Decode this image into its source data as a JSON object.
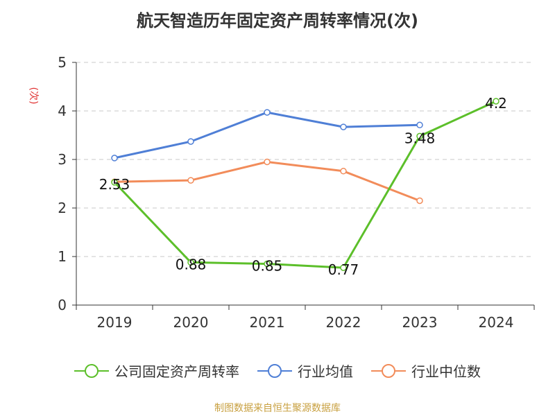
{
  "chart_data": {
    "type": "line",
    "title": "航天智造历年固定资产周转率情况(次)",
    "ylabel": "(次)",
    "categories": [
      "2019",
      "2020",
      "2021",
      "2022",
      "2023",
      "2024"
    ],
    "ylim": [
      0,
      5
    ],
    "yticks": [
      0,
      1,
      2,
      3,
      4,
      5
    ],
    "grid": true,
    "legend_position": "bottom",
    "series": [
      {
        "name": "公司固定资产周转率",
        "color": "#5cbf2a",
        "values": [
          2.53,
          0.88,
          0.85,
          0.77,
          3.48,
          4.2
        ],
        "labels": [
          "2.53",
          "0.88",
          "0.85",
          "0.77",
          "3.48",
          "4.2"
        ]
      },
      {
        "name": "行业均值",
        "color": "#4f7fd6",
        "values": [
          3.03,
          3.37,
          3.97,
          3.67,
          3.71,
          null
        ]
      },
      {
        "name": "行业中位数",
        "color": "#f28c5a",
        "values": [
          2.54,
          2.57,
          2.95,
          2.76,
          2.15,
          null
        ]
      }
    ]
  },
  "source": "制图数据来自恒生聚源数据库"
}
